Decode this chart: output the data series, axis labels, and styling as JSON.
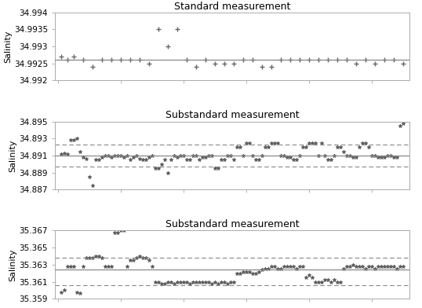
{
  "plot1": {
    "title": "Standard measurement",
    "ylabel": "Salinity",
    "ylim": [
      34.992,
      34.994
    ],
    "yticks": [
      34.992,
      34.9925,
      34.993,
      34.9935,
      34.994
    ],
    "ytick_labels": [
      "34.992",
      "34.9925",
      "34.993",
      "34.9935",
      "34.994"
    ],
    "hline": 34.9926,
    "marker": "+",
    "x": [
      1,
      3,
      5,
      8,
      11,
      14,
      17,
      20,
      23,
      26,
      29,
      32,
      35,
      38,
      41,
      44,
      47,
      50,
      53,
      56,
      59,
      62,
      65,
      68,
      71,
      74,
      77,
      80,
      83,
      86,
      89,
      92,
      95,
      98,
      101,
      104,
      107,
      110
    ],
    "y": [
      34.9927,
      34.9926,
      34.9927,
      34.9926,
      34.9924,
      34.9926,
      34.9926,
      34.9926,
      34.9926,
      34.9926,
      34.9925,
      34.9935,
      34.993,
      34.9935,
      34.9926,
      34.9924,
      34.9926,
      34.9925,
      34.9925,
      34.9925,
      34.9926,
      34.9926,
      34.9924,
      34.9924,
      34.9926,
      34.9926,
      34.9926,
      34.9926,
      34.9926,
      34.9926,
      34.9926,
      34.9926,
      34.9925,
      34.9926,
      34.9925,
      34.9926,
      34.9926,
      34.9925
    ]
  },
  "plot2": {
    "title": "Substandard measurement",
    "ylabel": "Salinity",
    "ylim": [
      34.887,
      34.895
    ],
    "yticks": [
      34.887,
      34.889,
      34.891,
      34.893,
      34.895
    ],
    "ytick_labels": [
      "34.887",
      "34.889",
      "34.891",
      "34.893",
      "34.895"
    ],
    "hline": 34.891,
    "hline_dashed_upper": 34.8923,
    "hline_dashed_lower": 34.8897,
    "marker": "*",
    "x": [
      1,
      2,
      3,
      4,
      5,
      6,
      7,
      8,
      9,
      10,
      11,
      12,
      13,
      14,
      15,
      16,
      17,
      18,
      19,
      20,
      21,
      22,
      23,
      24,
      25,
      26,
      27,
      28,
      29,
      30,
      31,
      32,
      33,
      34,
      35,
      36,
      37,
      38,
      39,
      40,
      41,
      42,
      43,
      44,
      45,
      46,
      47,
      48,
      49,
      50,
      51,
      52,
      53,
      54,
      55,
      56,
      57,
      58,
      59,
      60,
      61,
      62,
      63,
      64,
      65,
      66,
      67,
      68,
      69,
      70,
      71,
      72,
      73,
      74,
      75,
      76,
      77,
      78,
      79,
      80,
      81,
      82,
      83,
      84,
      85,
      86,
      87,
      88,
      89,
      90,
      91,
      92,
      93,
      94,
      95,
      96,
      97,
      98,
      99,
      100,
      101,
      102,
      103,
      104,
      105,
      106,
      107,
      108,
      109,
      110
    ],
    "y": [
      34.8912,
      34.8913,
      34.8912,
      34.8928,
      34.8928,
      34.893,
      34.8915,
      34.8908,
      34.8906,
      34.8885,
      34.8875,
      34.8905,
      34.8905,
      34.8908,
      34.891,
      34.891,
      34.8908,
      34.891,
      34.891,
      34.891,
      34.8908,
      34.891,
      34.8905,
      34.8908,
      34.891,
      34.8906,
      34.8905,
      34.8905,
      34.8908,
      34.891,
      34.8895,
      34.8895,
      34.89,
      34.8905,
      34.889,
      34.8905,
      34.891,
      34.8908,
      34.891,
      34.891,
      34.8905,
      34.8905,
      34.891,
      34.891,
      34.8905,
      34.8908,
      34.8908,
      34.891,
      34.891,
      34.8895,
      34.8895,
      34.8905,
      34.8905,
      34.891,
      34.891,
      34.8905,
      34.892,
      34.892,
      34.891,
      34.8925,
      34.8925,
      34.891,
      34.8905,
      34.8905,
      34.891,
      34.892,
      34.892,
      34.8925,
      34.8925,
      34.8925,
      34.891,
      34.891,
      34.8908,
      34.8908,
      34.8905,
      34.8905,
      34.891,
      34.892,
      34.892,
      34.8925,
      34.8925,
      34.8925,
      34.891,
      34.8925,
      34.891,
      34.8905,
      34.8905,
      34.891,
      34.892,
      34.892,
      34.8915,
      34.891,
      34.891,
      34.8908,
      34.8908,
      34.892,
      34.8925,
      34.8925,
      34.892,
      34.891,
      34.891,
      34.8908,
      34.8908,
      34.8908,
      34.891,
      34.891,
      34.8908,
      34.8908,
      34.8945,
      34.8948
    ]
  },
  "plot3": {
    "title": "Substandard measurement",
    "ylabel": "Salinity",
    "ylim": [
      35.359,
      35.367
    ],
    "yticks": [
      35.359,
      35.361,
      35.363,
      35.365,
      35.367
    ],
    "ytick_labels": [
      "35.359",
      "35.361",
      "35.363",
      "35.365",
      "35.367"
    ],
    "hline": 35.3624,
    "hline_dashed_upper": 35.3638,
    "hline_dashed_lower": 35.3606,
    "marker": "*",
    "x": [
      1,
      2,
      3,
      4,
      5,
      6,
      7,
      8,
      9,
      10,
      11,
      12,
      13,
      14,
      15,
      16,
      17,
      18,
      19,
      20,
      21,
      22,
      23,
      24,
      25,
      26,
      27,
      28,
      29,
      30,
      31,
      32,
      33,
      34,
      35,
      36,
      37,
      38,
      39,
      40,
      41,
      42,
      43,
      44,
      45,
      46,
      47,
      48,
      49,
      50,
      51,
      52,
      53,
      54,
      55,
      56,
      57,
      58,
      59,
      60,
      61,
      62,
      63,
      64,
      65,
      66,
      67,
      68,
      69,
      70,
      71,
      72,
      73,
      74,
      75,
      76,
      77,
      78,
      79,
      80,
      81,
      82,
      83,
      84,
      85,
      86,
      87,
      88,
      89,
      90,
      91,
      92,
      93,
      94,
      95,
      96,
      97,
      98,
      99,
      100,
      101,
      102,
      103,
      104,
      105,
      106,
      107,
      108,
      109,
      110
    ],
    "y": [
      35.3598,
      35.36,
      35.3628,
      35.3628,
      35.3628,
      35.3598,
      35.3597,
      35.3628,
      35.3638,
      35.3638,
      35.3638,
      35.364,
      35.364,
      35.3638,
      35.3628,
      35.3628,
      35.3628,
      35.3668,
      35.3668,
      35.367,
      35.367,
      35.3628,
      35.3635,
      35.3635,
      35.3638,
      35.364,
      35.3638,
      35.3638,
      35.3635,
      35.3628,
      35.361,
      35.361,
      35.3608,
      35.3608,
      35.361,
      35.361,
      35.3608,
      35.361,
      35.361,
      35.361,
      35.361,
      35.3608,
      35.361,
      35.361,
      35.361,
      35.361,
      35.361,
      35.361,
      35.3608,
      35.361,
      35.3608,
      35.361,
      35.361,
      35.3608,
      35.361,
      35.361,
      35.362,
      35.362,
      35.3622,
      35.3622,
      35.3622,
      35.362,
      35.362,
      35.3622,
      35.3624,
      35.3625,
      35.3625,
      35.3628,
      35.3628,
      35.3625,
      35.3625,
      35.3628,
      35.3628,
      35.3628,
      35.3628,
      35.3625,
      35.3628,
      35.3628,
      35.3615,
      35.3618,
      35.3615,
      35.361,
      35.361,
      35.361,
      35.3612,
      35.3612,
      35.361,
      35.3612,
      35.361,
      35.361,
      35.3625,
      35.3628,
      35.3628,
      35.363,
      35.3628,
      35.3628,
      35.3628,
      35.3625,
      35.3628,
      35.3628,
      35.3625,
      35.3628,
      35.3628,
      35.3628,
      35.3628,
      35.3628,
      35.3628,
      35.3625,
      35.3628,
      35.3628
    ]
  },
  "bg_color": "#ffffff",
  "marker_color": "#555555",
  "hline_color": "#888888",
  "dashed_color": "#888888",
  "title_fontsize": 9,
  "label_fontsize": 8,
  "tick_fontsize": 7.5
}
